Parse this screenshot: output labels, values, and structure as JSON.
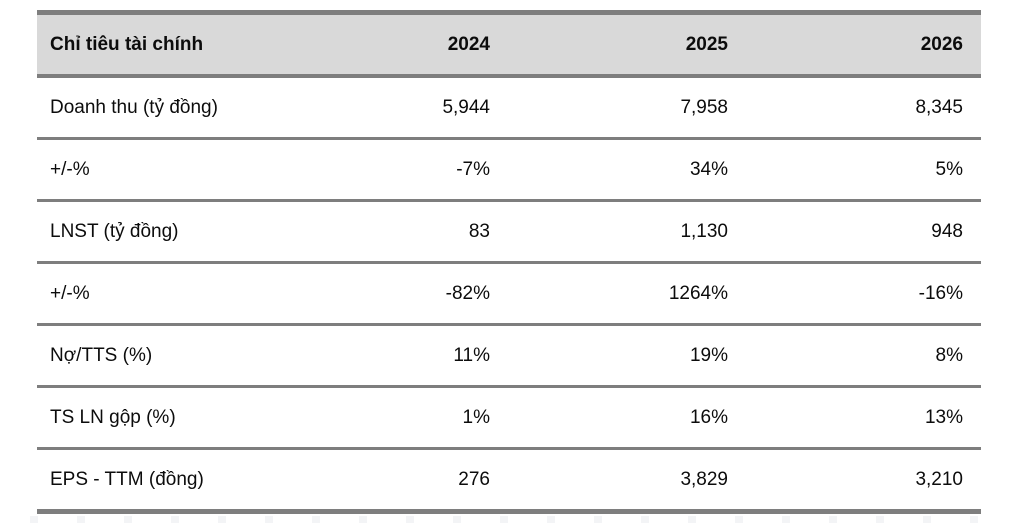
{
  "colors": {
    "header_bg": "#d9d9d9",
    "border": "#7e7e7e",
    "text": "#0c0c0c",
    "page_bg": "#ffffff"
  },
  "chart_data": {
    "type": "table",
    "title": "Chỉ tiêu tài chính",
    "columns": [
      "Chỉ tiêu tài chính",
      "2024",
      "2025",
      "2026"
    ],
    "rows": [
      {
        "label": "Doanh thu (tỷ đồng)",
        "values": [
          "5,944",
          "7,958",
          "8,345"
        ]
      },
      {
        "label": "+/-%",
        "values": [
          "-7%",
          "34%",
          "5%"
        ]
      },
      {
        "label": "LNST (tỷ đồng)",
        "values": [
          "83",
          "1,130",
          "948"
        ]
      },
      {
        "label": "+/-%",
        "values": [
          "-82%",
          "1264%",
          "-16%"
        ]
      },
      {
        "label": "Nợ/TTS (%)",
        "values": [
          "11%",
          "19%",
          "8%"
        ]
      },
      {
        "label": "TS LN gộp (%)",
        "values": [
          "1%",
          "16%",
          "13%"
        ]
      },
      {
        "label": "EPS - TTM (đồng)",
        "values": [
          "276",
          "3,829",
          "3,210"
        ]
      }
    ]
  }
}
